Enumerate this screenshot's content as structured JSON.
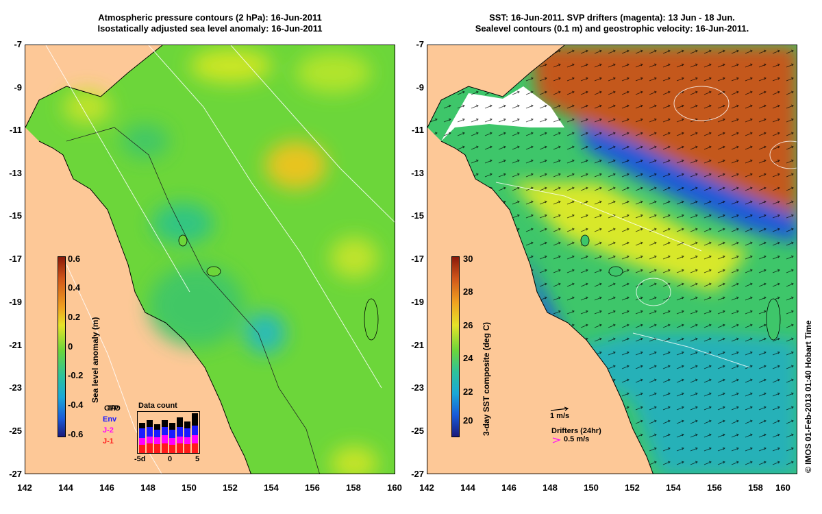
{
  "left_panel": {
    "title_line1": "Atmospheric pressure contours (2 hPa): 16-Jun-2011",
    "title_line2": "Isostatically adjusted sea level anomaly: 16-Jun-2011",
    "y_ticks": [
      "-7",
      "-9",
      "-11",
      "-13",
      "-15",
      "-17",
      "-19",
      "-21",
      "-23",
      "-25",
      "-27"
    ],
    "x_ticks": [
      "142",
      "144",
      "146",
      "148",
      "150",
      "152",
      "154",
      "156",
      "158",
      "160"
    ],
    "colorbar": {
      "label": "Sea level anomaly (m)",
      "ticks": [
        "0.6",
        "0.4",
        "0.2",
        "0",
        "-0.2",
        "-0.4",
        "-0.6"
      ]
    },
    "legend": {
      "title": "Data count",
      "series": [
        "T/P",
        "Env",
        "J-2",
        "J-1"
      ],
      "series_overlay": "GFO",
      "x_ticks": [
        "-5d",
        "0",
        "5"
      ]
    }
  },
  "right_panel": {
    "title_line1": "SST: 16-Jun-2011. SVP drifters (magenta): 13 Jun - 18 Jun.",
    "title_line2": "Sealevel contours (0.1 m) and geostrophic velocity: 16-Jun-2011.",
    "y_ticks": [
      "-7",
      "-9",
      "-11",
      "-13",
      "-15",
      "-17",
      "-19",
      "-21",
      "-23",
      "-25",
      "-27"
    ],
    "x_ticks": [
      "142",
      "144",
      "146",
      "148",
      "150",
      "152",
      "154",
      "156",
      "158",
      "160"
    ],
    "colorbar": {
      "label": "3-day SST composite (deg C)",
      "ticks": [
        "30",
        "28",
        "26",
        "24",
        "22",
        "20"
      ]
    },
    "velocity_scale_label": "1 m/s",
    "drifters_label": "Drifters (24hr)",
    "drifter_speed_label": "0.5 m/s"
  },
  "credit": "© IMOS 01-Feb-2013 01:40 Hobart Time",
  "colors": {
    "land": "#fdc897",
    "sla_mid": "#6cd63a",
    "magenta": "#ff00ff"
  }
}
